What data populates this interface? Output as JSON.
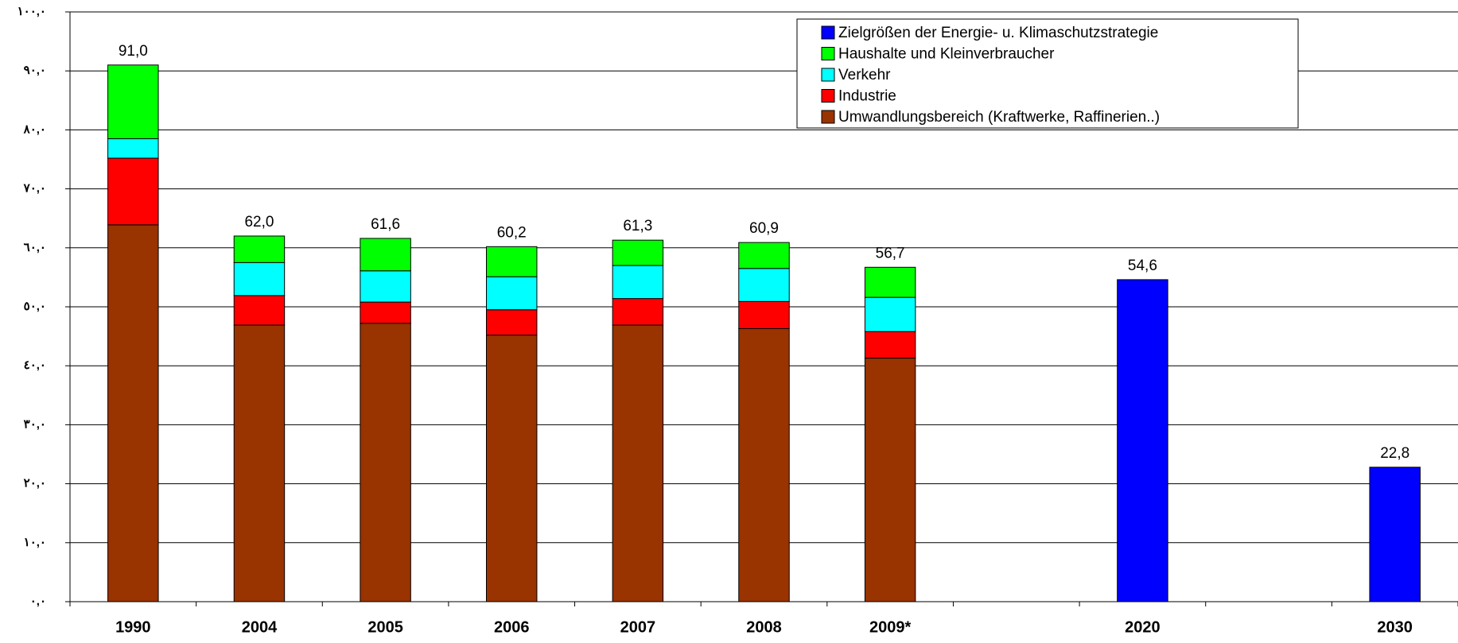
{
  "chart_data": {
    "type": "stacked_bar",
    "categories": [
      "1990",
      "2004",
      "2005",
      "2006",
      "2007",
      "2008",
      "2009*",
      null,
      "2020",
      null,
      "2030"
    ],
    "series": [
      {
        "name": "Zielgrößen der Energie- u. Klimaschutzstrategie",
        "color": "#0000ff",
        "values": [
          null,
          null,
          null,
          null,
          null,
          null,
          null,
          null,
          54.6,
          null,
          22.8
        ]
      },
      {
        "name": "Haushalte und Kleinverbraucher",
        "color": "#00ff00",
        "values": [
          12.5,
          4.5,
          5.5,
          5.1,
          4.3,
          4.4,
          5.1,
          null,
          null,
          null,
          null
        ]
      },
      {
        "name": "Verkehr",
        "color": "#00ffff",
        "values": [
          3.3,
          5.6,
          5.3,
          5.6,
          5.6,
          5.6,
          5.8,
          null,
          null,
          null,
          null
        ]
      },
      {
        "name": "Industrie",
        "color": "#ff0000",
        "values": [
          11.3,
          5.0,
          3.6,
          4.3,
          4.5,
          4.6,
          4.5,
          null,
          null,
          null,
          null
        ]
      },
      {
        "name": "Umwandlungsbereich (Kraftwerke, Raffinerien..)",
        "color": "#993300",
        "values": [
          63.9,
          46.9,
          47.2,
          45.2,
          46.9,
          46.3,
          41.3,
          null,
          null,
          null,
          null
        ]
      }
    ],
    "totals": [
      91.0,
      62.0,
      61.6,
      60.2,
      61.3,
      60.9,
      56.7,
      null,
      54.6,
      null,
      22.8
    ],
    "total_labels": [
      "91,0",
      "62,0",
      "61,6",
      "60,2",
      "61,3",
      "60,9",
      "56,7",
      null,
      "54,6",
      null,
      "22,8"
    ],
    "ylim": [
      0,
      100
    ],
    "yticks": [
      {
        "value": 0,
        "label": "٠,٠"
      },
      {
        "value": 10,
        "label": "١٠,٠"
      },
      {
        "value": 20,
        "label": "٢٠,٠"
      },
      {
        "value": 30,
        "label": "٣٠,٠"
      },
      {
        "value": 40,
        "label": "٤٠,٠"
      },
      {
        "value": 50,
        "label": "٥٠,٠"
      },
      {
        "value": 60,
        "label": "٦٠,٠"
      },
      {
        "value": 70,
        "label": "٧٠,٠"
      },
      {
        "value": 80,
        "label": "٨٠,٠"
      },
      {
        "value": 90,
        "label": "٩٠,٠"
      },
      {
        "value": 100,
        "label": "١٠٠,٠"
      }
    ],
    "grid": true,
    "legend": "top-right"
  }
}
